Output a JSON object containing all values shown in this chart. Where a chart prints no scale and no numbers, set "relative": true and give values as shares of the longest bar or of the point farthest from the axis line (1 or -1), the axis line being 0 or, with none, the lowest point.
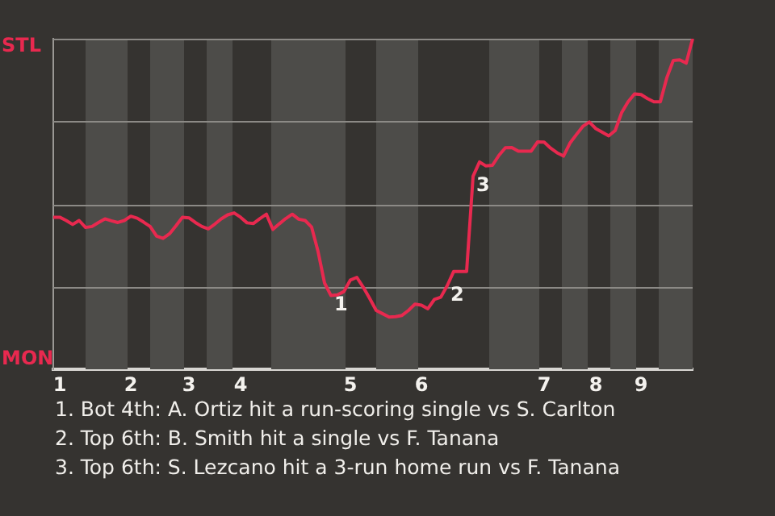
{
  "chart_data": {
    "type": "line",
    "relative": true,
    "legend": false,
    "marker": "none",
    "line_style": "solid",
    "categories": [
      null,
      "1",
      null,
      null,
      null,
      null,
      null,
      null,
      null,
      null,
      null,
      null,
      "2",
      null,
      null,
      null,
      null,
      null,
      null,
      null,
      null,
      "3",
      null,
      null,
      null,
      null,
      null,
      null,
      null,
      "4",
      null,
      null,
      null,
      null,
      null,
      null,
      null,
      null,
      null,
      null,
      null,
      null,
      null,
      null,
      null,
      null,
      "5",
      null,
      null,
      null,
      null,
      null,
      null,
      null,
      null,
      null,
      null,
      "6",
      null,
      null,
      null,
      null,
      null,
      null,
      null,
      null,
      null,
      null,
      null,
      null,
      null,
      null,
      null,
      null,
      null,
      null,
      "7",
      null,
      null,
      null,
      null,
      null,
      null,
      null,
      "8",
      null,
      null,
      null,
      null,
      null,
      null,
      "9",
      null,
      null,
      null,
      null,
      null,
      null,
      null,
      null
    ],
    "series": [
      {
        "color": "#e8294f",
        "values": [
          0.46,
          0.46,
          0.45,
          0.438,
          0.45,
          0.429,
          0.432,
          0.444,
          0.455,
          0.449,
          0.444,
          0.45,
          0.463,
          0.457,
          0.445,
          0.432,
          0.403,
          0.396,
          0.41,
          0.434,
          0.46,
          0.458,
          0.444,
          0.432,
          0.425,
          0.439,
          0.455,
          0.467,
          0.473,
          0.46,
          0.443,
          0.441,
          0.456,
          0.469,
          0.423,
          0.44,
          0.456,
          0.469,
          0.454,
          0.45,
          0.43,
          0.356,
          0.261,
          0.223,
          0.225,
          0.235,
          0.27,
          0.278,
          0.248,
          0.214,
          0.178,
          0.168,
          0.158,
          0.159,
          0.163,
          0.178,
          0.197,
          0.194,
          0.183,
          0.211,
          0.218,
          0.253,
          0.296,
          0.296,
          0.296,
          0.584,
          0.627,
          0.615,
          0.617,
          0.647,
          0.67,
          0.671,
          0.66,
          0.66,
          0.66,
          0.688,
          0.687,
          0.669,
          0.655,
          0.645,
          0.684,
          0.71,
          0.735,
          0.748,
          0.728,
          0.717,
          0.706,
          0.722,
          0.776,
          0.809,
          0.833,
          0.831,
          0.819,
          0.809,
          0.809,
          0.882,
          0.934,
          0.936,
          0.926,
          1
        ]
      }
    ],
    "ref_lines": [
      {
        "axis": "y",
        "value": 0.25,
        "color": "#8c8a86"
      },
      {
        "axis": "y",
        "value": 0.5,
        "color": "#8c8a86"
      },
      {
        "axis": "y",
        "value": 0.75,
        "color": "#8c8a86"
      },
      {
        "axis": "y",
        "value": 1,
        "color": "#8c8a86"
      }
    ],
    "annotations": [
      "STL",
      "MON",
      {
        "text": "1",
        "y": 0.223
      },
      {
        "text": "2",
        "y": 0.253
      },
      {
        "text": "3",
        "y": 0.584
      },
      "1. Bot 4th: A. Ortiz hit a run-scoring single vs S. Carlton",
      "2. Top 6th: B. Smith hit a single vs F. Tanana",
      "3. Top 6th: S. Lezcano hit a 3-run home run vs F. Tanana"
    ]
  }
}
